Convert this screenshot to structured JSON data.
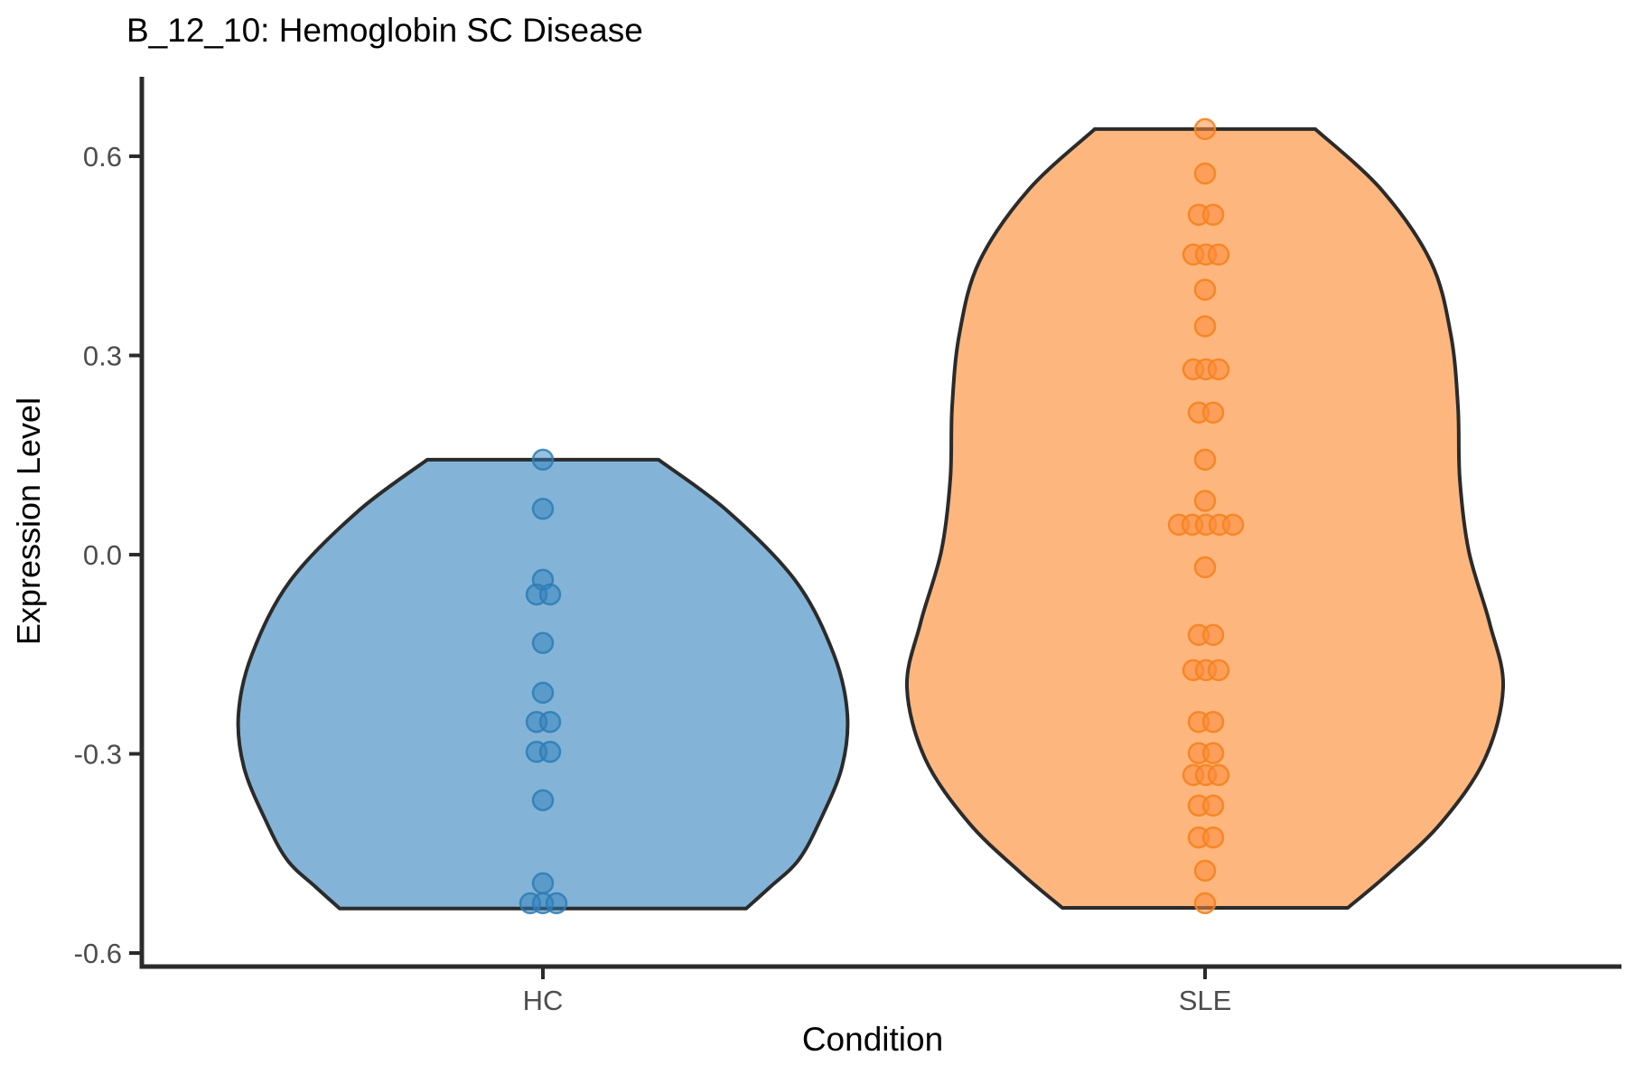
{
  "chart_data": {
    "type": "violin",
    "title": "B_12_10: Hemoglobin SC Disease",
    "xlabel": "Condition",
    "ylabel": "Expression Level",
    "categories": [
      "HC",
      "SLE"
    ],
    "y_ticks": [
      0.6,
      0.3,
      0.0,
      -0.3,
      -0.6
    ],
    "y_tick_labels": [
      "0.6",
      "0.3",
      "0.0",
      "-0.3",
      "-0.6"
    ],
    "ylim": [
      -0.62,
      0.72
    ],
    "grid": "off",
    "legend": "none",
    "colors": {
      "axis_line": "#2B2B2B",
      "tick_label": "#4D4D4D",
      "title_text": "#000000",
      "axis_title_text": "#000000",
      "violin_outline": "#2B2B2B"
    },
    "series": [
      {
        "name": "HC",
        "violin_fill": "#83B4D7",
        "point_fill": "#3182BD",
        "point_fill_opacity": 0.5,
        "point_stroke": "#2E7CB4",
        "point_stroke_opacity": 0.85,
        "violin_range": [
          -0.533,
          0.143
        ],
        "violin_profile": [
          [
            0.143,
            128
          ],
          [
            0.065,
            205
          ],
          [
            -0.04,
            280
          ],
          [
            -0.15,
            322
          ],
          [
            -0.24,
            337
          ],
          [
            -0.32,
            331
          ],
          [
            -0.4,
            307
          ],
          [
            -0.46,
            283
          ],
          [
            -0.5,
            252
          ],
          [
            -0.533,
            225
          ]
        ],
        "points": [
          {
            "v": 0.143,
            "dx": 0
          },
          {
            "v": 0.069,
            "dx": 0
          },
          {
            "v": -0.038,
            "dx": 0
          },
          {
            "v": -0.06,
            "dx": -7
          },
          {
            "v": -0.06,
            "dx": 8
          },
          {
            "v": -0.133,
            "dx": 0
          },
          {
            "v": -0.208,
            "dx": 0
          },
          {
            "v": -0.252,
            "dx": -7
          },
          {
            "v": -0.252,
            "dx": 8
          },
          {
            "v": -0.297,
            "dx": -7
          },
          {
            "v": -0.297,
            "dx": 8
          },
          {
            "v": -0.37,
            "dx": 0
          },
          {
            "v": -0.495,
            "dx": 0
          },
          {
            "v": -0.525,
            "dx": -14
          },
          {
            "v": -0.525,
            "dx": 0
          },
          {
            "v": -0.525,
            "dx": 15
          }
        ]
      },
      {
        "name": "SLE",
        "violin_fill": "#FDB77E",
        "point_fill": "#FD8D3C",
        "point_fill_opacity": 0.55,
        "point_stroke": "#F5831F",
        "point_stroke_opacity": 0.9,
        "violin_range": [
          -0.532,
          0.641
        ],
        "violin_profile": [
          [
            0.641,
            122
          ],
          [
            0.55,
            195
          ],
          [
            0.441,
            250
          ],
          [
            0.332,
            272
          ],
          [
            0.223,
            280
          ],
          [
            0.114,
            282
          ],
          [
            0.005,
            292
          ],
          [
            -0.103,
            315
          ],
          [
            -0.199,
            330
          ],
          [
            -0.307,
            310
          ],
          [
            -0.403,
            262
          ],
          [
            -0.478,
            205
          ],
          [
            -0.532,
            158
          ]
        ],
        "points": [
          {
            "v": 0.641,
            "dx": 0
          },
          {
            "v": 0.574,
            "dx": 0
          },
          {
            "v": 0.512,
            "dx": -7
          },
          {
            "v": 0.512,
            "dx": 9
          },
          {
            "v": 0.452,
            "dx": -13
          },
          {
            "v": 0.452,
            "dx": 1
          },
          {
            "v": 0.452,
            "dx": 15
          },
          {
            "v": 0.399,
            "dx": 0
          },
          {
            "v": 0.344,
            "dx": 0
          },
          {
            "v": 0.279,
            "dx": -13
          },
          {
            "v": 0.279,
            "dx": 1
          },
          {
            "v": 0.279,
            "dx": 15
          },
          {
            "v": 0.214,
            "dx": -7
          },
          {
            "v": 0.214,
            "dx": 9
          },
          {
            "v": 0.143,
            "dx": 0
          },
          {
            "v": 0.081,
            "dx": 0
          },
          {
            "v": 0.045,
            "dx": -29
          },
          {
            "v": 0.045,
            "dx": -14
          },
          {
            "v": 0.045,
            "dx": 1
          },
          {
            "v": 0.045,
            "dx": 16
          },
          {
            "v": 0.045,
            "dx": 31
          },
          {
            "v": -0.019,
            "dx": 0
          },
          {
            "v": -0.121,
            "dx": -7
          },
          {
            "v": -0.121,
            "dx": 9
          },
          {
            "v": -0.174,
            "dx": -13
          },
          {
            "v": -0.174,
            "dx": 1
          },
          {
            "v": -0.174,
            "dx": 15
          },
          {
            "v": -0.252,
            "dx": -7
          },
          {
            "v": -0.252,
            "dx": 9
          },
          {
            "v": -0.299,
            "dx": -7
          },
          {
            "v": -0.299,
            "dx": 9
          },
          {
            "v": -0.332,
            "dx": -13
          },
          {
            "v": -0.332,
            "dx": 1
          },
          {
            "v": -0.332,
            "dx": 15
          },
          {
            "v": -0.378,
            "dx": -7
          },
          {
            "v": -0.378,
            "dx": 9
          },
          {
            "v": -0.426,
            "dx": -7
          },
          {
            "v": -0.426,
            "dx": 9
          },
          {
            "v": -0.476,
            "dx": 0
          },
          {
            "v": -0.525,
            "dx": 0
          }
        ]
      }
    ]
  }
}
